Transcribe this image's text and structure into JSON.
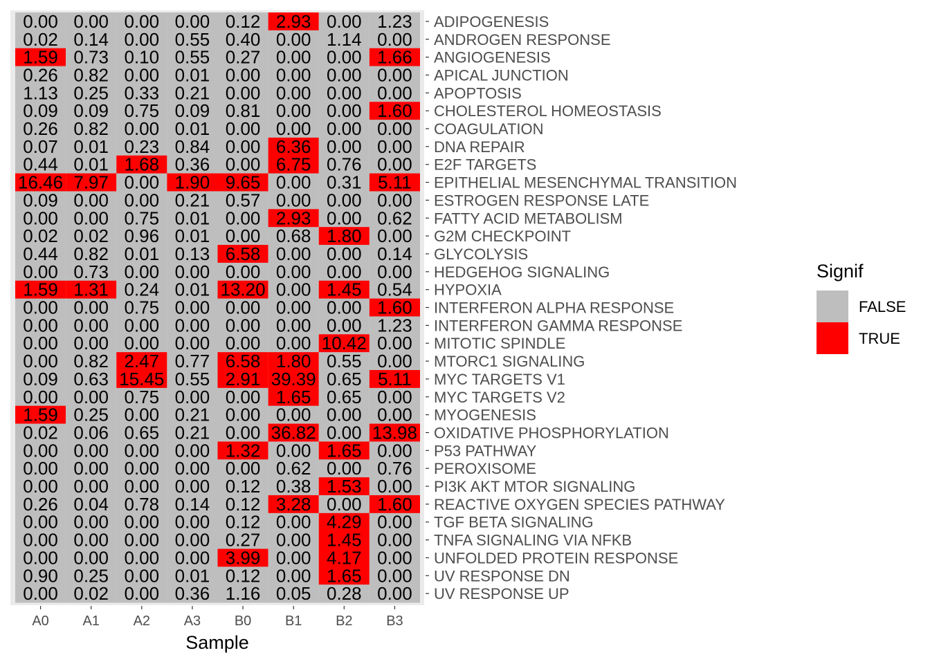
{
  "chart_data": {
    "type": "heatmap",
    "xlabel": "Sample",
    "ylabel": "",
    "columns": [
      "A0",
      "A1",
      "A2",
      "A3",
      "B0",
      "B1",
      "B2",
      "B3"
    ],
    "rows": [
      "ADIPOGENESIS",
      "ANDROGEN RESPONSE",
      "ANGIOGENESIS",
      "APICAL JUNCTION",
      "APOPTOSIS",
      "CHOLESTEROL HOMEOSTASIS",
      "COAGULATION",
      "DNA REPAIR",
      "E2F TARGETS",
      "EPITHELIAL MESENCHYMAL TRANSITION",
      "ESTROGEN RESPONSE LATE",
      "FATTY ACID METABOLISM",
      "G2M CHECKPOINT",
      "GLYCOLYSIS",
      "HEDGEHOG SIGNALING",
      "HYPOXIA",
      "INTERFERON ALPHA RESPONSE",
      "INTERFERON GAMMA RESPONSE",
      "MITOTIC SPINDLE",
      "MTORC1 SIGNALING",
      "MYC TARGETS V1",
      "MYC TARGETS V2",
      "MYOGENESIS",
      "OXIDATIVE PHOSPHORYLATION",
      "P53 PATHWAY",
      "PEROXISOME",
      "PI3K AKT MTOR SIGNALING",
      "REACTIVE OXYGEN SPECIES PATHWAY",
      "TGF BETA SIGNALING",
      "TNFA SIGNALING VIA NFKB",
      "UNFOLDED PROTEIN RESPONSE",
      "UV RESPONSE DN",
      "UV RESPONSE UP"
    ],
    "values": [
      [
        "0.00",
        "0.00",
        "0.00",
        "0.00",
        "0.12",
        "2.93",
        "0.00",
        "1.23"
      ],
      [
        "0.02",
        "0.14",
        "0.00",
        "0.55",
        "0.40",
        "0.00",
        "1.14",
        "0.00"
      ],
      [
        "1.59",
        "0.73",
        "0.10",
        "0.55",
        "0.27",
        "0.00",
        "0.00",
        "1.66"
      ],
      [
        "0.26",
        "0.82",
        "0.00",
        "0.01",
        "0.00",
        "0.00",
        "0.00",
        "0.00"
      ],
      [
        "1.13",
        "0.25",
        "0.33",
        "0.21",
        "0.00",
        "0.00",
        "0.00",
        "0.00"
      ],
      [
        "0.09",
        "0.09",
        "0.75",
        "0.09",
        "0.81",
        "0.00",
        "0.00",
        "1.60"
      ],
      [
        "0.26",
        "0.82",
        "0.00",
        "0.01",
        "0.00",
        "0.00",
        "0.00",
        "0.00"
      ],
      [
        "0.07",
        "0.01",
        "0.23",
        "0.84",
        "0.00",
        "6.36",
        "0.00",
        "0.00"
      ],
      [
        "0.44",
        "0.01",
        "1.68",
        "0.36",
        "0.00",
        "6.75",
        "0.76",
        "0.00"
      ],
      [
        "16.46",
        "7.97",
        "0.00",
        "1.90",
        "9.65",
        "0.00",
        "0.31",
        "5.11"
      ],
      [
        "0.09",
        "0.00",
        "0.00",
        "0.21",
        "0.57",
        "0.00",
        "0.00",
        "0.00"
      ],
      [
        "0.00",
        "0.00",
        "0.75",
        "0.01",
        "0.00",
        "2.93",
        "0.00",
        "0.62"
      ],
      [
        "0.02",
        "0.02",
        "0.96",
        "0.01",
        "0.00",
        "0.68",
        "1.80",
        "0.00"
      ],
      [
        "0.44",
        "0.82",
        "0.01",
        "0.13",
        "6.58",
        "0.00",
        "0.00",
        "0.14"
      ],
      [
        "0.00",
        "0.73",
        "0.00",
        "0.00",
        "0.00",
        "0.00",
        "0.00",
        "0.00"
      ],
      [
        "1.59",
        "1.31",
        "0.24",
        "0.01",
        "13.20",
        "0.00",
        "1.45",
        "0.54"
      ],
      [
        "0.00",
        "0.00",
        "0.75",
        "0.00",
        "0.00",
        "0.00",
        "0.00",
        "1.60"
      ],
      [
        "0.00",
        "0.00",
        "0.00",
        "0.00",
        "0.00",
        "0.00",
        "0.00",
        "1.23"
      ],
      [
        "0.00",
        "0.00",
        "0.00",
        "0.00",
        "0.00",
        "0.00",
        "10.42",
        "0.00"
      ],
      [
        "0.00",
        "0.82",
        "2.47",
        "0.77",
        "6.58",
        "1.80",
        "0.55",
        "0.00"
      ],
      [
        "0.09",
        "0.63",
        "15.45",
        "0.55",
        "2.91",
        "39.39",
        "0.65",
        "5.11"
      ],
      [
        "0.00",
        "0.00",
        "0.75",
        "0.00",
        "0.00",
        "1.65",
        "0.65",
        "0.00"
      ],
      [
        "1.59",
        "0.25",
        "0.00",
        "0.21",
        "0.00",
        "0.00",
        "0.00",
        "0.00"
      ],
      [
        "0.02",
        "0.06",
        "0.65",
        "0.21",
        "0.00",
        "36.82",
        "0.00",
        "13.98"
      ],
      [
        "0.00",
        "0.00",
        "0.00",
        "0.00",
        "1.32",
        "0.00",
        "1.65",
        "0.00"
      ],
      [
        "0.00",
        "0.00",
        "0.00",
        "0.00",
        "0.00",
        "0.62",
        "0.00",
        "0.76"
      ],
      [
        "0.00",
        "0.00",
        "0.00",
        "0.00",
        "0.12",
        "0.38",
        "1.53",
        "0.00"
      ],
      [
        "0.26",
        "0.04",
        "0.78",
        "0.14",
        "0.12",
        "3.28",
        "0.00",
        "1.60"
      ],
      [
        "0.00",
        "0.00",
        "0.00",
        "0.00",
        "0.12",
        "0.00",
        "4.29",
        "0.00"
      ],
      [
        "0.00",
        "0.00",
        "0.00",
        "0.00",
        "0.27",
        "0.00",
        "1.45",
        "0.00"
      ],
      [
        "0.00",
        "0.00",
        "0.00",
        "0.00",
        "3.99",
        "0.00",
        "4.17",
        "0.00"
      ],
      [
        "0.90",
        "0.25",
        "0.00",
        "0.01",
        "0.12",
        "0.00",
        "1.65",
        "0.00"
      ],
      [
        "0.00",
        "0.02",
        "0.00",
        "0.36",
        "1.16",
        "0.05",
        "0.28",
        "0.00"
      ]
    ],
    "signif": [
      [
        0,
        0,
        0,
        0,
        0,
        1,
        0,
        0
      ],
      [
        0,
        0,
        0,
        0,
        0,
        0,
        0,
        0
      ],
      [
        1,
        0,
        0,
        0,
        0,
        0,
        0,
        1
      ],
      [
        0,
        0,
        0,
        0,
        0,
        0,
        0,
        0
      ],
      [
        0,
        0,
        0,
        0,
        0,
        0,
        0,
        0
      ],
      [
        0,
        0,
        0,
        0,
        0,
        0,
        0,
        1
      ],
      [
        0,
        0,
        0,
        0,
        0,
        0,
        0,
        0
      ],
      [
        0,
        0,
        0,
        0,
        0,
        1,
        0,
        0
      ],
      [
        0,
        0,
        1,
        0,
        0,
        1,
        0,
        0
      ],
      [
        1,
        1,
        0,
        1,
        1,
        0,
        0,
        1
      ],
      [
        0,
        0,
        0,
        0,
        0,
        0,
        0,
        0
      ],
      [
        0,
        0,
        0,
        0,
        0,
        1,
        0,
        0
      ],
      [
        0,
        0,
        0,
        0,
        0,
        0,
        1,
        0
      ],
      [
        0,
        0,
        0,
        0,
        1,
        0,
        0,
        0
      ],
      [
        0,
        0,
        0,
        0,
        0,
        0,
        0,
        0
      ],
      [
        1,
        1,
        0,
        0,
        1,
        0,
        1,
        0
      ],
      [
        0,
        0,
        0,
        0,
        0,
        0,
        0,
        1
      ],
      [
        0,
        0,
        0,
        0,
        0,
        0,
        0,
        0
      ],
      [
        0,
        0,
        0,
        0,
        0,
        0,
        1,
        0
      ],
      [
        0,
        0,
        1,
        0,
        1,
        1,
        0,
        0
      ],
      [
        0,
        0,
        1,
        0,
        1,
        1,
        0,
        1
      ],
      [
        0,
        0,
        0,
        0,
        0,
        1,
        0,
        0
      ],
      [
        1,
        0,
        0,
        0,
        0,
        0,
        0,
        0
      ],
      [
        0,
        0,
        0,
        0,
        0,
        1,
        0,
        1
      ],
      [
        0,
        0,
        0,
        0,
        1,
        0,
        1,
        0
      ],
      [
        0,
        0,
        0,
        0,
        0,
        0,
        0,
        0
      ],
      [
        0,
        0,
        0,
        0,
        0,
        0,
        1,
        0
      ],
      [
        0,
        0,
        0,
        0,
        0,
        1,
        0,
        1
      ],
      [
        0,
        0,
        0,
        0,
        0,
        0,
        1,
        0
      ],
      [
        0,
        0,
        0,
        0,
        0,
        0,
        1,
        0
      ],
      [
        0,
        0,
        0,
        0,
        1,
        0,
        1,
        0
      ],
      [
        0,
        0,
        0,
        0,
        0,
        0,
        1,
        0
      ],
      [
        0,
        0,
        0,
        0,
        0,
        0,
        0,
        0
      ]
    ],
    "legend": {
      "title": "Signif",
      "position": "right",
      "items": [
        {
          "label": "FALSE",
          "color": "#bebebe"
        },
        {
          "label": "TRUE",
          "color": "#ff0000"
        }
      ]
    },
    "colors": {
      "false": "#bebebe",
      "true": "#ff0000",
      "panel_background": "#ebebeb"
    }
  }
}
